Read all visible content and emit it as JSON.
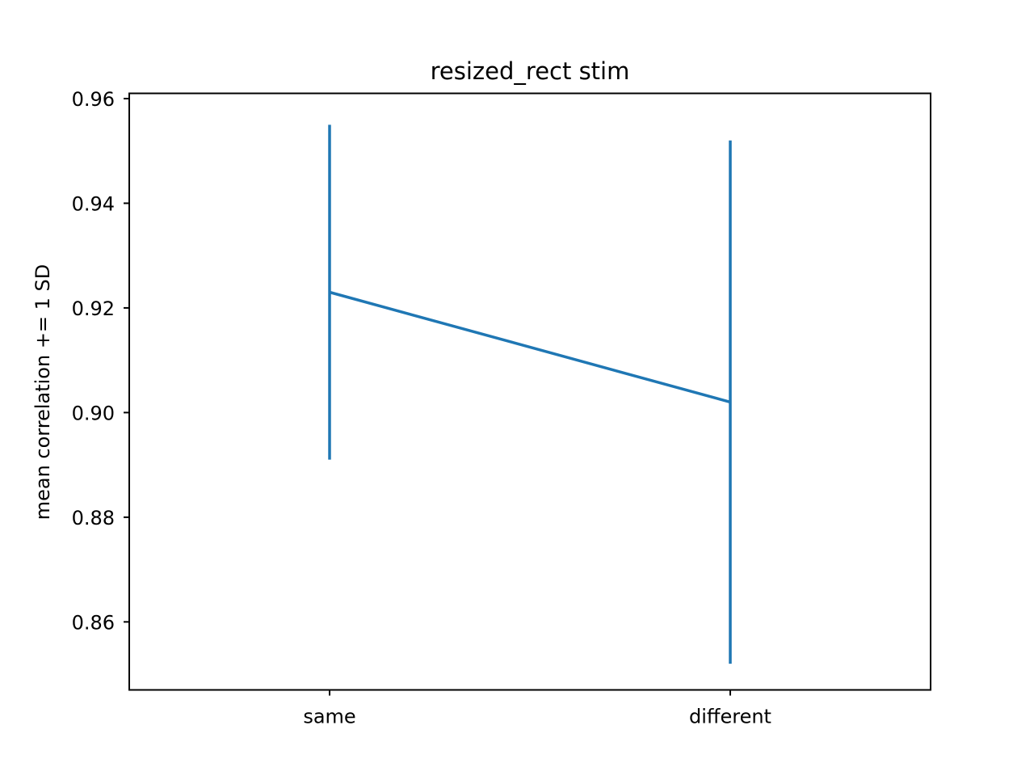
{
  "chart_data": {
    "type": "line",
    "title": "resized_rect stim",
    "xlabel": "",
    "ylabel": "mean correlation += 1 SD",
    "categories": [
      "same",
      "different"
    ],
    "series": [
      {
        "values": [
          0.923,
          0.902
        ],
        "error": [
          0.032,
          0.05
        ],
        "color": "#1f77b4"
      }
    ],
    "yticks": [
      "0.86",
      "0.88",
      "0.90",
      "0.92",
      "0.94",
      "0.96"
    ],
    "ylim": [
      0.847,
      0.961
    ],
    "grid": false
  }
}
